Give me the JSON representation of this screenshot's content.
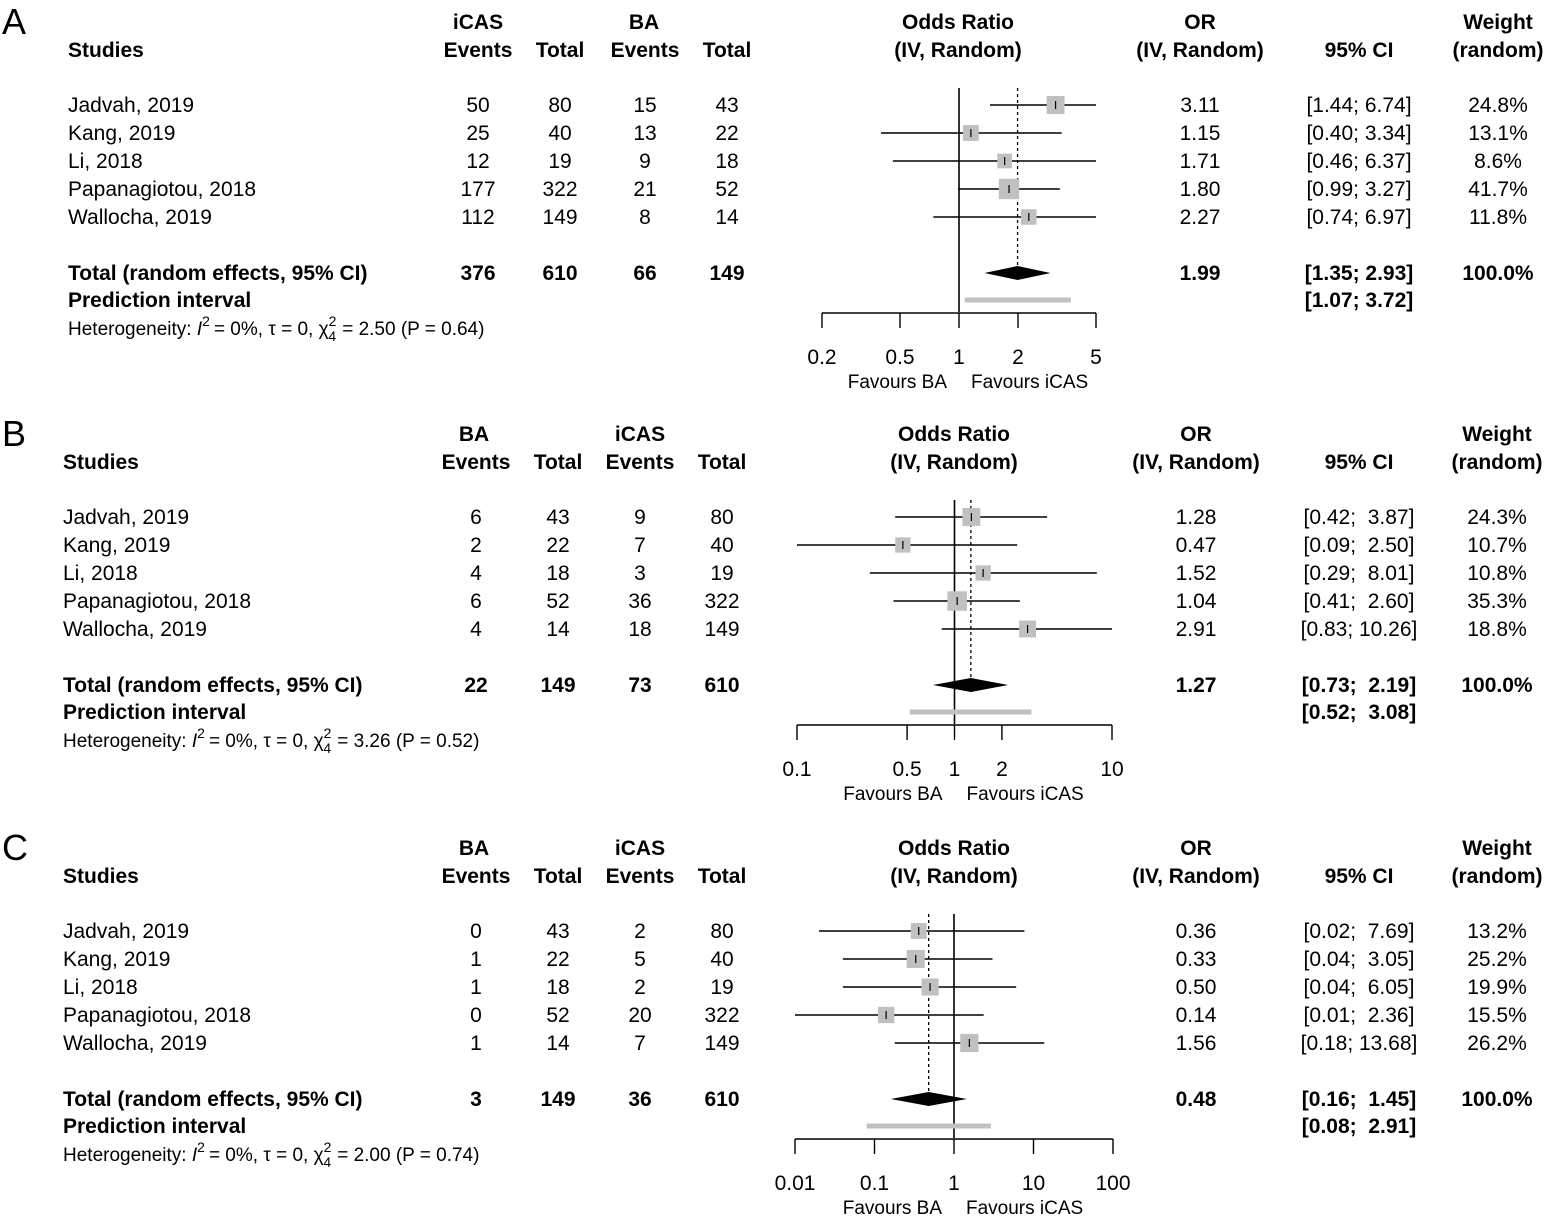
{
  "chart_data": [
    {
      "type": "forest",
      "panel_label": "A",
      "headers": {
        "studies": "Studies",
        "group1": "iCAS",
        "group2": "BA",
        "events": "Events",
        "total": "Total",
        "effect_title": "Odds Ratio",
        "effect_sub": "(IV, Random)",
        "or_title": "OR",
        "or_sub": "(IV, Random)",
        "ci": "95% CI",
        "weight_title": "Weight",
        "weight_sub": "(random)"
      },
      "studies": [
        {
          "name": "Jadvah, 2019",
          "e1": "50",
          "t1": "80",
          "e2": "15",
          "t2": "43",
          "or": 3.11,
          "lo": 1.44,
          "hi": 6.74,
          "or_text": "3.11",
          "ci_text": "[1.44; 6.74]",
          "weight_text": "24.8%",
          "weight": 24.8
        },
        {
          "name": "Kang, 2019",
          "e1": "25",
          "t1": "40",
          "e2": "13",
          "t2": "22",
          "or": 1.15,
          "lo": 0.4,
          "hi": 3.34,
          "or_text": "1.15",
          "ci_text": "[0.40; 3.34]",
          "weight_text": "13.1%",
          "weight": 13.1
        },
        {
          "name": "Li, 2018",
          "e1": "12",
          "t1": "19",
          "e2": "9",
          "t2": "18",
          "or": 1.71,
          "lo": 0.46,
          "hi": 6.37,
          "or_text": "1.71",
          "ci_text": "[0.46; 6.37]",
          "weight_text": "8.6%",
          "weight": 8.6
        },
        {
          "name": "Papanagiotou, 2018",
          "e1": "177",
          "t1": "322",
          "e2": "21",
          "t2": "52",
          "or": 1.8,
          "lo": 0.99,
          "hi": 3.27,
          "or_text": "1.80",
          "ci_text": "[0.99; 3.27]",
          "weight_text": "41.7%",
          "weight": 41.7
        },
        {
          "name": "Wallocha, 2019",
          "e1": "112",
          "t1": "149",
          "e2": "8",
          "t2": "14",
          "or": 2.27,
          "lo": 0.74,
          "hi": 6.97,
          "or_text": "2.27",
          "ci_text": "[0.74; 6.97]",
          "weight_text": "11.8%",
          "weight": 11.8
        }
      ],
      "total": {
        "label": "Total (random effects, 95% CI)",
        "e1": "376",
        "t1": "610",
        "e2": "66",
        "t2": "149",
        "or": 1.99,
        "lo": 1.35,
        "hi": 2.93,
        "or_text": "1.99",
        "ci_text": "[1.35; 2.93]",
        "weight_text": "100.0%"
      },
      "prediction": {
        "label": "Prediction interval",
        "lo": 1.07,
        "hi": 3.72,
        "ci_text": "[1.07; 3.72]"
      },
      "heterogeneity": {
        "prefix": "Heterogeneity: ",
        "i2": "= 0%, τ = 0, ",
        "chi_df": "4",
        "chi_rest": "= 2.50 (P = 0.64)"
      },
      "axis": {
        "scale": "log",
        "xlim": [
          0.2,
          5
        ],
        "ticks": [
          0.2,
          0.5,
          1,
          2,
          5
        ],
        "tick_labels": [
          "0.2",
          "0.5",
          "1",
          "2",
          "5"
        ],
        "favours_left": "Favours BA",
        "favours_right": "Favours iCAS"
      }
    },
    {
      "type": "forest",
      "panel_label": "B",
      "headers": {
        "studies": "Studies",
        "group1": "BA",
        "group2": "iCAS",
        "events": "Events",
        "total": "Total",
        "effect_title": "Odds Ratio",
        "effect_sub": "(IV, Random)",
        "or_title": "OR",
        "or_sub": "(IV, Random)",
        "ci": "95% CI",
        "weight_title": "Weight",
        "weight_sub": "(random)"
      },
      "studies": [
        {
          "name": "Jadvah, 2019",
          "e1": "6",
          "t1": "43",
          "e2": "9",
          "t2": "80",
          "or": 1.28,
          "lo": 0.42,
          "hi": 3.87,
          "or_text": "1.28",
          "ci_text": "[0.42;  3.87]",
          "weight_text": "24.3%",
          "weight": 24.3
        },
        {
          "name": "Kang, 2019",
          "e1": "2",
          "t1": "22",
          "e2": "7",
          "t2": "40",
          "or": 0.47,
          "lo": 0.09,
          "hi": 2.5,
          "or_text": "0.47",
          "ci_text": "[0.09;  2.50]",
          "weight_text": "10.7%",
          "weight": 10.7
        },
        {
          "name": "Li, 2018",
          "e1": "4",
          "t1": "18",
          "e2": "3",
          "t2": "19",
          "or": 1.52,
          "lo": 0.29,
          "hi": 8.01,
          "or_text": "1.52",
          "ci_text": "[0.29;  8.01]",
          "weight_text": "10.8%",
          "weight": 10.8
        },
        {
          "name": "Papanagiotou, 2018",
          "e1": "6",
          "t1": "52",
          "e2": "36",
          "t2": "322",
          "or": 1.04,
          "lo": 0.41,
          "hi": 2.6,
          "or_text": "1.04",
          "ci_text": "[0.41;  2.60]",
          "weight_text": "35.3%",
          "weight": 35.3
        },
        {
          "name": "Wallocha, 2019",
          "e1": "4",
          "t1": "14",
          "e2": "18",
          "t2": "149",
          "or": 2.91,
          "lo": 0.83,
          "hi": 10.26,
          "or_text": "2.91",
          "ci_text": "[0.83; 10.26]",
          "weight_text": "18.8%",
          "weight": 18.8
        }
      ],
      "total": {
        "label": "Total (random effects, 95% CI)",
        "e1": "22",
        "t1": "149",
        "e2": "73",
        "t2": "610",
        "or": 1.27,
        "lo": 0.73,
        "hi": 2.19,
        "or_text": "1.27",
        "ci_text": "[0.73;  2.19]",
        "weight_text": "100.0%"
      },
      "prediction": {
        "label": "Prediction interval",
        "lo": 0.52,
        "hi": 3.08,
        "ci_text": "[0.52;  3.08]"
      },
      "heterogeneity": {
        "prefix": "Heterogeneity: ",
        "i2": "= 0%, τ = 0, ",
        "chi_df": "4",
        "chi_rest": "= 3.26 (P = 0.52)"
      },
      "axis": {
        "scale": "log",
        "xlim": [
          0.1,
          10
        ],
        "ticks": [
          0.1,
          0.5,
          1,
          2,
          10
        ],
        "tick_labels": [
          "0.1",
          "0.5",
          "1",
          "2",
          "10"
        ],
        "favours_left": "Favours BA",
        "favours_right": "Favours iCAS"
      }
    },
    {
      "type": "forest",
      "panel_label": "C",
      "headers": {
        "studies": "Studies",
        "group1": "BA",
        "group2": "iCAS",
        "events": "Events",
        "total": "Total",
        "effect_title": "Odds Ratio",
        "effect_sub": "(IV, Random)",
        "or_title": "OR",
        "or_sub": "(IV, Random)",
        "ci": "95% CI",
        "weight_title": "Weight",
        "weight_sub": "(random)"
      },
      "studies": [
        {
          "name": "Jadvah, 2019",
          "e1": "0",
          "t1": "43",
          "e2": "2",
          "t2": "80",
          "or": 0.36,
          "lo": 0.02,
          "hi": 7.69,
          "or_text": "0.36",
          "ci_text": "[0.02;  7.69]",
          "weight_text": "13.2%",
          "weight": 13.2
        },
        {
          "name": "Kang, 2019",
          "e1": "1",
          "t1": "22",
          "e2": "5",
          "t2": "40",
          "or": 0.33,
          "lo": 0.04,
          "hi": 3.05,
          "or_text": "0.33",
          "ci_text": "[0.04;  3.05]",
          "weight_text": "25.2%",
          "weight": 25.2
        },
        {
          "name": "Li, 2018",
          "e1": "1",
          "t1": "18",
          "e2": "2",
          "t2": "19",
          "or": 0.5,
          "lo": 0.04,
          "hi": 6.05,
          "or_text": "0.50",
          "ci_text": "[0.04;  6.05]",
          "weight_text": "19.9%",
          "weight": 19.9
        },
        {
          "name": "Papanagiotou, 2018",
          "e1": "0",
          "t1": "52",
          "e2": "20",
          "t2": "322",
          "or": 0.14,
          "lo": 0.01,
          "hi": 2.36,
          "or_text": "0.14",
          "ci_text": "[0.01;  2.36]",
          "weight_text": "15.5%",
          "weight": 15.5
        },
        {
          "name": "Wallocha, 2019",
          "e1": "1",
          "t1": "14",
          "e2": "7",
          "t2": "149",
          "or": 1.56,
          "lo": 0.18,
          "hi": 13.68,
          "or_text": "1.56",
          "ci_text": "[0.18; 13.68]",
          "weight_text": "26.2%",
          "weight": 26.2
        }
      ],
      "total": {
        "label": "Total (random effects, 95% CI)",
        "e1": "3",
        "t1": "149",
        "e2": "36",
        "t2": "610",
        "or": 0.48,
        "lo": 0.16,
        "hi": 1.45,
        "or_text": "0.48",
        "ci_text": "[0.16;  1.45]",
        "weight_text": "100.0%"
      },
      "prediction": {
        "label": "Prediction interval",
        "lo": 0.08,
        "hi": 2.91,
        "ci_text": "[0.08;  2.91]"
      },
      "heterogeneity": {
        "prefix": "Heterogeneity: ",
        "i2": "= 0%, τ = 0, ",
        "chi_df": "4",
        "chi_rest": "= 2.00 (P = 0.74)"
      },
      "axis": {
        "scale": "log",
        "xlim": [
          0.01,
          100
        ],
        "ticks": [
          0.01,
          0.1,
          1,
          10,
          100
        ],
        "tick_labels": [
          "0.01",
          "0.1",
          "1",
          "10",
          "100"
        ],
        "favours_left": "Favours BA",
        "favours_right": "Favours iCAS"
      }
    }
  ],
  "colors": {
    "square": "#c0c0c0",
    "prediction": "#c0c0c0",
    "diamond": "#000000",
    "line": "#000000"
  }
}
